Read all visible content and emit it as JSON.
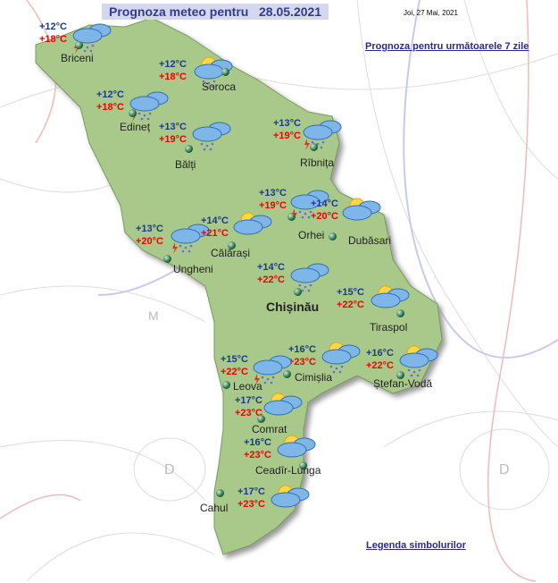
{
  "header": {
    "title": "Prognoza meteo pentru   28.05.2021",
    "date": "Joi, 27 Mai, 2021"
  },
  "links": {
    "week": "Prognoza pentru următoarele 7 zile",
    "legend": "Legenda simbolurilor"
  },
  "stations": [
    {
      "name": "Briceni",
      "min": "+12°C",
      "max": "+18°C",
      "icon": "storm-rain"
    },
    {
      "name": "Soroca",
      "min": "+12°C",
      "max": "+18°C",
      "icon": "sun-cloud-rain"
    },
    {
      "name": "Edineț",
      "min": "+12°C",
      "max": "+18°C",
      "icon": "storm-rain"
    },
    {
      "name": "Bălți",
      "min": "+13°C",
      "max": "+19°C",
      "icon": "cloud-rain"
    },
    {
      "name": "Rîbnița",
      "min": "+13°C",
      "max": "+19°C",
      "icon": "storm-rain"
    },
    {
      "name": "Orhei",
      "min": "+13°C",
      "max": "+19°C",
      "icon": "storm-rain"
    },
    {
      "name": "Dubăsari",
      "min": "+14°C",
      "max": "+20°C",
      "icon": "sun-cloud"
    },
    {
      "name": "Ungheni",
      "min": "+13°C",
      "max": "+20°C",
      "icon": "storm-rain"
    },
    {
      "name": "Călărași",
      "min": "+14°C",
      "max": "+21°C",
      "icon": "sun-cloud"
    },
    {
      "name": "Chișinău",
      "min": "+14°C",
      "max": "+22°C",
      "icon": "cloud-rain"
    },
    {
      "name": "Tiraspol",
      "min": "+15°C",
      "max": "+22°C",
      "icon": "sun-cloud"
    },
    {
      "name": "Cimișlia",
      "min": "+16°C",
      "max": "+23°C",
      "icon": "sun-cloud-rain"
    },
    {
      "name": "Ștefan-Vodă",
      "min": "+16°C",
      "max": "+22°C",
      "icon": "sun-cloud-rain"
    },
    {
      "name": "Leova",
      "min": "+15°C",
      "max": "+22°C",
      "icon": "storm-rain"
    },
    {
      "name": "Comrat",
      "min": "+17°C",
      "max": "+23°C",
      "icon": "sun-cloud"
    },
    {
      "name": "Ceadîr-Lunga",
      "min": "+16°C",
      "max": "+23°C",
      "icon": "sun-cloud"
    },
    {
      "name": "Cahul",
      "min": "+17°C",
      "max": "+23°C",
      "icon": "sun-cloud"
    }
  ],
  "colors": {
    "land": "#a9c98a",
    "min": "#1a3a8a",
    "max": "#ee0000"
  }
}
